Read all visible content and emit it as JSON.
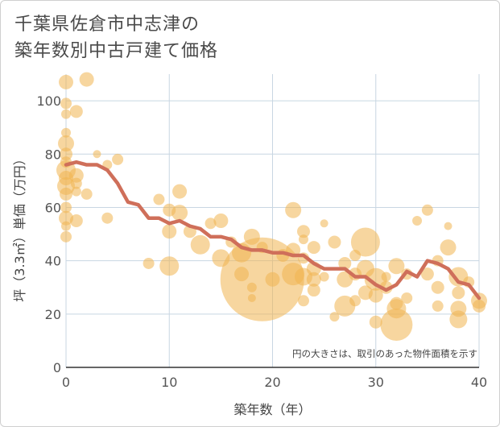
{
  "title": {
    "line1": "千葉県佐倉市中志津の",
    "line2": "築年数別中古戸建て価格"
  },
  "chart_data": {
    "type": "scatter",
    "xlabel": "築年数（年）",
    "ylabel": "坪（3.3㎡）単価（万円）",
    "xlim": [
      0,
      40
    ],
    "ylim": [
      0,
      110
    ],
    "xticks": [
      0,
      10,
      20,
      30,
      40
    ],
    "yticks": [
      0,
      20,
      40,
      60,
      80,
      100
    ],
    "grid": true,
    "note": "円の大きさは、取引のあった物件面積を示す",
    "colors": {
      "bubble": "#f0b550",
      "line": "#cf6f5a",
      "grid": "#c8d6e2"
    },
    "bubbles": [
      {
        "x": 0,
        "y": 107,
        "s": 9
      },
      {
        "x": 0,
        "y": 99,
        "s": 7
      },
      {
        "x": 0,
        "y": 95,
        "s": 6
      },
      {
        "x": 0,
        "y": 88,
        "s": 6
      },
      {
        "x": 0,
        "y": 84,
        "s": 10
      },
      {
        "x": 0,
        "y": 80,
        "s": 8
      },
      {
        "x": 0,
        "y": 77,
        "s": 7
      },
      {
        "x": 0,
        "y": 74,
        "s": 12
      },
      {
        "x": 0,
        "y": 71,
        "s": 9
      },
      {
        "x": 0,
        "y": 68,
        "s": 11
      },
      {
        "x": 0,
        "y": 65,
        "s": 8
      },
      {
        "x": 0,
        "y": 60,
        "s": 7
      },
      {
        "x": 0,
        "y": 56,
        "s": 9
      },
      {
        "x": 0,
        "y": 53,
        "s": 6
      },
      {
        "x": 0,
        "y": 49,
        "s": 7
      },
      {
        "x": 1,
        "y": 96,
        "s": 8
      },
      {
        "x": 1,
        "y": 72,
        "s": 9
      },
      {
        "x": 1,
        "y": 69,
        "s": 7
      },
      {
        "x": 1,
        "y": 66,
        "s": 6
      },
      {
        "x": 1,
        "y": 55,
        "s": 8
      },
      {
        "x": 2,
        "y": 108,
        "s": 9
      },
      {
        "x": 2,
        "y": 65,
        "s": 7
      },
      {
        "x": 3,
        "y": 80,
        "s": 5
      },
      {
        "x": 4,
        "y": 76,
        "s": 6
      },
      {
        "x": 4,
        "y": 56,
        "s": 7
      },
      {
        "x": 5,
        "y": 78,
        "s": 7
      },
      {
        "x": 8,
        "y": 39,
        "s": 7
      },
      {
        "x": 9,
        "y": 63,
        "s": 7
      },
      {
        "x": 10,
        "y": 59,
        "s": 8
      },
      {
        "x": 10,
        "y": 51,
        "s": 9
      },
      {
        "x": 10,
        "y": 38,
        "s": 12
      },
      {
        "x": 11,
        "y": 66,
        "s": 9
      },
      {
        "x": 11,
        "y": 58,
        "s": 10
      },
      {
        "x": 12,
        "y": 51,
        "s": 8
      },
      {
        "x": 13,
        "y": 46,
        "s": 12
      },
      {
        "x": 14,
        "y": 54,
        "s": 7
      },
      {
        "x": 15,
        "y": 55,
        "s": 9
      },
      {
        "x": 15,
        "y": 41,
        "s": 11
      },
      {
        "x": 16,
        "y": 47,
        "s": 7
      },
      {
        "x": 17,
        "y": 43,
        "s": 12
      },
      {
        "x": 17,
        "y": 35,
        "s": 9
      },
      {
        "x": 18,
        "y": 49,
        "s": 10
      },
      {
        "x": 18,
        "y": 30,
        "s": 6
      },
      {
        "x": 18,
        "y": 26,
        "s": 5
      },
      {
        "x": 19,
        "y": 33,
        "s": 52
      },
      {
        "x": 19,
        "y": 45,
        "s": 7
      },
      {
        "x": 20,
        "y": 33,
        "s": 9
      },
      {
        "x": 21,
        "y": 42,
        "s": 8
      },
      {
        "x": 22,
        "y": 59,
        "s": 10
      },
      {
        "x": 22,
        "y": 44,
        "s": 9
      },
      {
        "x": 22,
        "y": 35,
        "s": 14
      },
      {
        "x": 23,
        "y": 51,
        "s": 8
      },
      {
        "x": 23,
        "y": 41,
        "s": 7
      },
      {
        "x": 23,
        "y": 34,
        "s": 11
      },
      {
        "x": 24,
        "y": 33,
        "s": 9
      },
      {
        "x": 24,
        "y": 29,
        "s": 8
      },
      {
        "x": 23,
        "y": 25,
        "s": 7
      },
      {
        "x": 23,
        "y": 48,
        "s": 6
      },
      {
        "x": 24,
        "y": 45,
        "s": 8
      },
      {
        "x": 24,
        "y": 37,
        "s": 9
      },
      {
        "x": 25,
        "y": 54,
        "s": 5
      },
      {
        "x": 25,
        "y": 34,
        "s": 6
      },
      {
        "x": 26,
        "y": 47,
        "s": 8
      },
      {
        "x": 26,
        "y": 19,
        "s": 6
      },
      {
        "x": 27,
        "y": 39,
        "s": 8
      },
      {
        "x": 27,
        "y": 33,
        "s": 10
      },
      {
        "x": 27,
        "y": 23,
        "s": 13
      },
      {
        "x": 28,
        "y": 42,
        "s": 7
      },
      {
        "x": 28,
        "y": 35,
        "s": 8
      },
      {
        "x": 28,
        "y": 25,
        "s": 7
      },
      {
        "x": 29,
        "y": 47,
        "s": 18
      },
      {
        "x": 29,
        "y": 37,
        "s": 11
      },
      {
        "x": 29,
        "y": 28,
        "s": 9
      },
      {
        "x": 30,
        "y": 33,
        "s": 14
      },
      {
        "x": 30,
        "y": 27,
        "s": 9
      },
      {
        "x": 30,
        "y": 17,
        "s": 8
      },
      {
        "x": 31,
        "y": 30,
        "s": 8
      },
      {
        "x": 31,
        "y": 34,
        "s": 6
      },
      {
        "x": 32,
        "y": 38,
        "s": 10
      },
      {
        "x": 32,
        "y": 22,
        "s": 12
      },
      {
        "x": 32,
        "y": 16,
        "s": 20
      },
      {
        "x": 32,
        "y": 24,
        "s": 8
      },
      {
        "x": 33,
        "y": 26,
        "s": 7
      },
      {
        "x": 33,
        "y": 35,
        "s": 7
      },
      {
        "x": 34,
        "y": 55,
        "s": 6
      },
      {
        "x": 35,
        "y": 59,
        "s": 7
      },
      {
        "x": 35,
        "y": 35,
        "s": 8
      },
      {
        "x": 36,
        "y": 40,
        "s": 7
      },
      {
        "x": 36,
        "y": 30,
        "s": 8
      },
      {
        "x": 36,
        "y": 23,
        "s": 7
      },
      {
        "x": 37,
        "y": 53,
        "s": 5
      },
      {
        "x": 37,
        "y": 45,
        "s": 10
      },
      {
        "x": 38,
        "y": 34,
        "s": 12
      },
      {
        "x": 38,
        "y": 28,
        "s": 8
      },
      {
        "x": 38,
        "y": 22,
        "s": 10
      },
      {
        "x": 38,
        "y": 18,
        "s": 11
      },
      {
        "x": 39,
        "y": 32,
        "s": 7
      },
      {
        "x": 40,
        "y": 25,
        "s": 10
      },
      {
        "x": 40,
        "y": 23,
        "s": 8
      }
    ],
    "series": [
      {
        "x": [
          0,
          1,
          2,
          3,
          4,
          5,
          6,
          7,
          8,
          9,
          10,
          11,
          12,
          13,
          14,
          15,
          16,
          17,
          18,
          19,
          20,
          21,
          22,
          23,
          24,
          25,
          26,
          27,
          28,
          29,
          30,
          31,
          32,
          33,
          34,
          35,
          36,
          37,
          38,
          39,
          40
        ],
        "y": [
          76,
          77,
          76,
          76,
          74,
          69,
          62,
          61,
          56,
          56,
          54,
          55,
          53,
          52,
          49,
          49,
          48,
          45,
          44,
          44,
          43,
          43,
          42,
          42,
          39,
          37,
          37,
          37,
          34,
          34,
          31,
          29,
          31,
          36,
          34,
          40,
          39,
          37,
          32,
          31,
          26
        ]
      }
    ]
  }
}
